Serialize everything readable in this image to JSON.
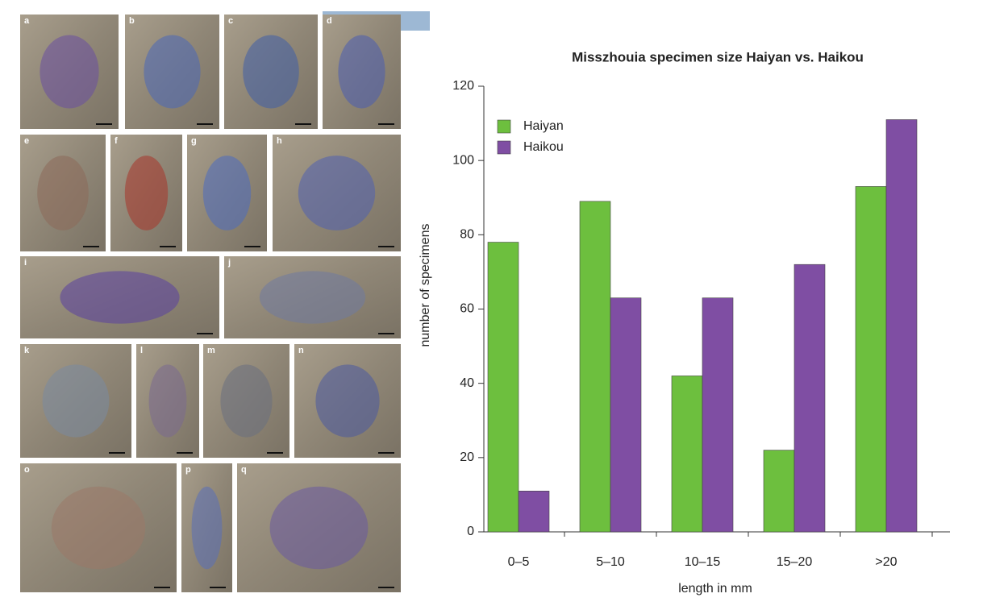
{
  "figure_panels": [
    "a",
    "b",
    "c",
    "d",
    "e",
    "f",
    "g",
    "h",
    "i",
    "j",
    "k",
    "l",
    "m",
    "n",
    "o",
    "p",
    "q"
  ],
  "chart_data": {
    "type": "bar",
    "title": "Misszhouia specimen size Haiyan vs. Haikou",
    "x_label": "length in mm",
    "y_label": "number of specimens",
    "categories": [
      "0–5",
      "5–10",
      "10–15",
      "15–20",
      ">20"
    ],
    "series": [
      {
        "name": "Haiyan",
        "color": "#6dbf3e",
        "values": [
          78,
          89,
          42,
          22,
          93
        ]
      },
      {
        "name": "Haikou",
        "color": "#7f4ea3",
        "values": [
          11,
          63,
          63,
          72,
          111
        ]
      }
    ],
    "ylim": [
      0,
      120
    ],
    "yticks": [
      0,
      20,
      40,
      60,
      80,
      100,
      120
    ],
    "grid": false,
    "legend": "top-left"
  }
}
